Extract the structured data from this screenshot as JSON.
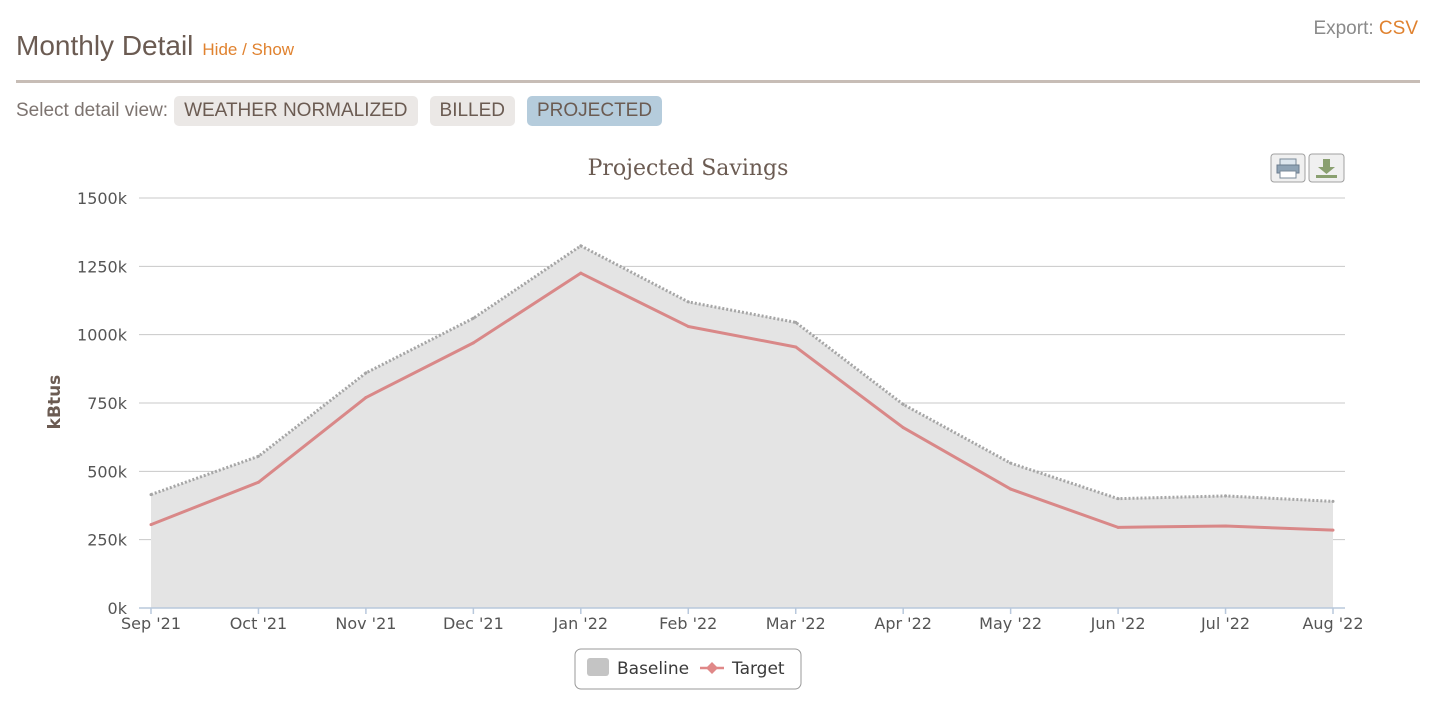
{
  "header": {
    "title": "Monthly Detail",
    "toggle_label": "Hide / Show"
  },
  "export": {
    "label": "Export:",
    "csv_label": "CSV"
  },
  "views": {
    "label": "Select detail view:",
    "options": [
      "WEATHER NORMALIZED",
      "BILLED",
      "PROJECTED"
    ],
    "active": "PROJECTED"
  },
  "toolbar": {
    "print_icon": "printer-icon",
    "download_icon": "download-icon"
  },
  "chart_data": {
    "type": "area",
    "title": "Projected Savings",
    "xlabel": "",
    "ylabel": "kBtus",
    "categories": [
      "Sep '21",
      "Oct '21",
      "Nov '21",
      "Dec '21",
      "Jan '22",
      "Feb '22",
      "Mar '22",
      "Apr '22",
      "May '22",
      "Jun '22",
      "Jul '22",
      "Aug '22"
    ],
    "y_ticks": [
      "0k",
      "250k",
      "500k",
      "750k",
      "1000k",
      "1250k",
      "1500k"
    ],
    "ylim": [
      0,
      1500000
    ],
    "grid": true,
    "legend_position": "bottom-center",
    "series": [
      {
        "name": "Baseline",
        "type": "area",
        "color": "#c4c4c4",
        "values": [
          415000,
          555000,
          860000,
          1060000,
          1325000,
          1120000,
          1045000,
          745000,
          530000,
          400000,
          410000,
          390000
        ]
      },
      {
        "name": "Target",
        "type": "line",
        "color": "#e08888",
        "values": [
          305000,
          460000,
          770000,
          970000,
          1225000,
          1030000,
          955000,
          660000,
          435000,
          295000,
          300000,
          285000
        ]
      }
    ]
  }
}
